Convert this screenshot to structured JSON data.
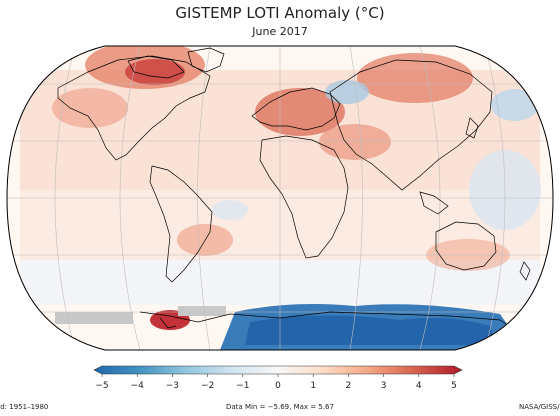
{
  "title": "GISTEMP LOTI Anomaly (°C)",
  "subtitle": "June 2017",
  "colorbar": {
    "ticks": [
      "−5",
      "−4",
      "−3",
      "−2",
      "−1",
      "0",
      "1",
      "2",
      "3",
      "4",
      "5"
    ],
    "min": -5,
    "max": 5,
    "colors": [
      "#2166ac",
      "#4393c3",
      "#92c5de",
      "#d1e5f0",
      "#f7f7f7",
      "#fddbc7",
      "#f4a582",
      "#d6604d",
      "#b2182b"
    ]
  },
  "footer": {
    "left": "iod: 1951–1980",
    "middle": "Data Min = −5.69, Max = 5.67",
    "right": "NASA/GISS/"
  },
  "map": {
    "ocean_color": "#ffffff",
    "land_outline_color": "#000000",
    "grid_color": "#bdbdbd",
    "missing_data_color": "#c8c8c8"
  }
}
